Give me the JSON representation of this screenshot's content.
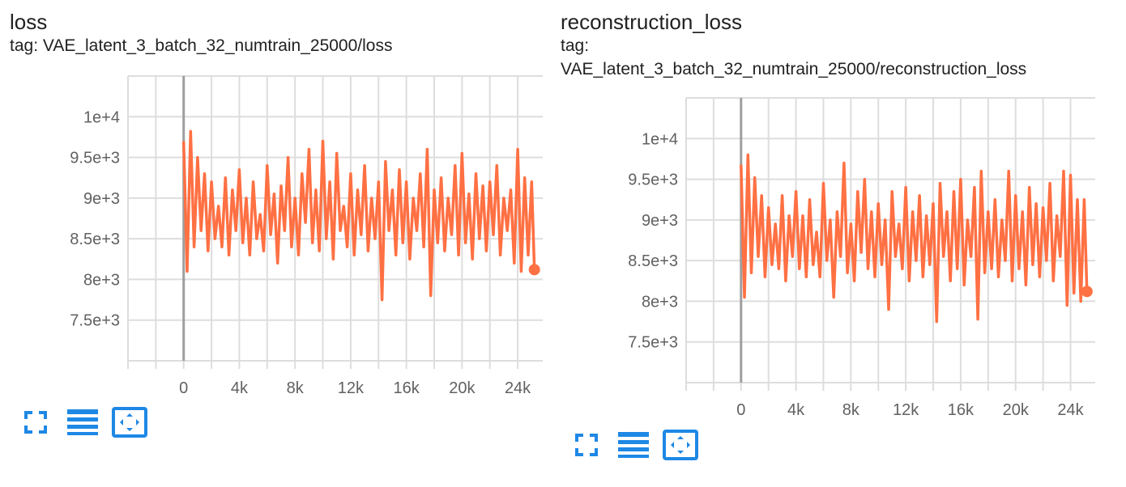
{
  "colors": {
    "series": "#ff7043",
    "grid": "#dddddd",
    "axis": "#9e9e9e",
    "zero_line": "#9e9e9e",
    "icon": "#1e88e5"
  },
  "cards": [
    {
      "title": "loss",
      "tag_label": "tag:",
      "tag_value": "VAE_latent_3_batch_32_numtrain_25000/loss",
      "toolbar": {
        "fullscreen_icon": "fullscreen-icon",
        "data_table_icon": "data-table-icon",
        "fit_domain_icon": "fit-domain-icon"
      },
      "chart_data": {
        "type": "line",
        "title": "loss",
        "xlabel": "",
        "ylabel": "",
        "x_ticks": [
          "0",
          "4k",
          "8k",
          "12k",
          "16k",
          "20k",
          "24k"
        ],
        "y_ticks": [
          "1e+4",
          "9.5e+3",
          "9e+3",
          "8.5e+3",
          "8e+3",
          "7.5e+3"
        ],
        "xlim": [
          -4000,
          25800
        ],
        "ylim": [
          7000,
          10500
        ],
        "grid": true,
        "series": [
          {
            "x": [
              0,
              250,
              500,
              750,
              1000,
              1250,
              1500,
              1750,
              2000,
              2250,
              2500,
              2750,
              3000,
              3250,
              3500,
              3750,
              4000,
              4250,
              4500,
              4750,
              5000,
              5250,
              5500,
              5750,
              6000,
              6250,
              6500,
              6750,
              7000,
              7250,
              7500,
              7750,
              8000,
              8250,
              8500,
              8750,
              9000,
              9250,
              9500,
              9750,
              10000,
              10250,
              10500,
              10750,
              11000,
              11250,
              11500,
              11750,
              12000,
              12250,
              12500,
              12750,
              13000,
              13250,
              13500,
              13750,
              14000,
              14250,
              14500,
              14750,
              15000,
              15250,
              15500,
              15750,
              16000,
              16250,
              16500,
              16750,
              17000,
              17250,
              17500,
              17750,
              18000,
              18250,
              18500,
              18750,
              19000,
              19250,
              19500,
              19750,
              20000,
              20250,
              20500,
              20750,
              21000,
              21250,
              21500,
              21750,
              22000,
              22250,
              22500,
              22750,
              23000,
              23250,
              23500,
              23750,
              24000,
              24250,
              24500,
              24750,
              25000,
              25200
            ],
            "y": [
              9700,
              8100,
              9820,
              8400,
              9500,
              8600,
              9300,
              8350,
              9200,
              8500,
              8900,
              8400,
              9250,
              8300,
              9100,
              8600,
              9350,
              8450,
              9000,
              8300,
              9200,
              8500,
              8800,
              8350,
              9400,
              8550,
              9050,
              8200,
              9150,
              8600,
              9500,
              8400,
              9000,
              8300,
              9300,
              8700,
              9600,
              8450,
              9100,
              8350,
              9700,
              8500,
              9200,
              8250,
              9550,
              8600,
              8900,
              8400,
              9300,
              8300,
              9100,
              8550,
              9400,
              8350,
              9000,
              8500,
              9200,
              7750,
              9450,
              8600,
              9100,
              8300,
              9350,
              8450,
              9200,
              8250,
              9000,
              8600,
              9300,
              8400,
              9600,
              7800,
              9100,
              8450,
              9250,
              8350,
              9000,
              8550,
              9400,
              8300,
              9550,
              8450,
              9050,
              8250,
              9300,
              8500,
              9150,
              8350,
              9200,
              8550,
              9400,
              8300,
              9000,
              8600,
              9100,
              8200,
              9600,
              8100,
              9250,
              8300,
              9200,
              8120
            ]
          }
        ]
      }
    },
    {
      "title": "reconstruction_loss",
      "tag_label": "tag:",
      "tag_value": "VAE_latent_3_batch_32_numtrain_25000/reconstruction_loss",
      "toolbar": {
        "fullscreen_icon": "fullscreen-icon",
        "data_table_icon": "data-table-icon",
        "fit_domain_icon": "fit-domain-icon"
      },
      "chart_data": {
        "type": "line",
        "title": "reconstruction_loss",
        "xlabel": "",
        "ylabel": "",
        "x_ticks": [
          "0",
          "4k",
          "8k",
          "12k",
          "16k",
          "20k",
          "24k"
        ],
        "y_ticks": [
          "1e+4",
          "9.5e+3",
          "9e+3",
          "8.5e+3",
          "8e+3",
          "7.5e+3"
        ],
        "xlim": [
          -4000,
          25800
        ],
        "ylim": [
          7000,
          10500
        ],
        "grid": true,
        "series": [
          {
            "x": [
              0,
              250,
              500,
              750,
              1000,
              1250,
              1500,
              1750,
              2000,
              2250,
              2500,
              2750,
              3000,
              3250,
              3500,
              3750,
              4000,
              4250,
              4500,
              4750,
              5000,
              5250,
              5500,
              5750,
              6000,
              6250,
              6500,
              6750,
              7000,
              7250,
              7500,
              7750,
              8000,
              8250,
              8500,
              8750,
              9000,
              9250,
              9500,
              9750,
              10000,
              10250,
              10500,
              10750,
              11000,
              11250,
              11500,
              11750,
              12000,
              12250,
              12500,
              12750,
              13000,
              13250,
              13500,
              13750,
              14000,
              14250,
              14500,
              14750,
              15000,
              15250,
              15500,
              15750,
              16000,
              16250,
              16500,
              16750,
              17000,
              17250,
              17500,
              17750,
              18000,
              18250,
              18500,
              18750,
              19000,
              19250,
              19500,
              19750,
              20000,
              20250,
              20500,
              20750,
              21000,
              21250,
              21500,
              21750,
              22000,
              22250,
              22500,
              22750,
              23000,
              23250,
              23500,
              23750,
              24000,
              24250,
              24500,
              24750,
              25000,
              25200
            ],
            "y": [
              9680,
              8050,
              9800,
              8350,
              9520,
              8550,
              9300,
              8300,
              9150,
              8450,
              8950,
              8400,
              9300,
              8250,
              9050,
              8550,
              9350,
              8400,
              9050,
              8300,
              9250,
              8450,
              8850,
              8300,
              9450,
              8500,
              9000,
              8050,
              9100,
              8550,
              9700,
              8350,
              8950,
              8250,
              9350,
              8600,
              9500,
              8400,
              9100,
              8300,
              9200,
              8450,
              9000,
              7900,
              9350,
              8550,
              8950,
              8400,
              9400,
              8250,
              9100,
              8500,
              9300,
              8300,
              9050,
              8450,
              9200,
              7750,
              9450,
              8550,
              9100,
              8250,
              9350,
              8400,
              9500,
              8200,
              9000,
              8550,
              9400,
              7780,
              9600,
              8350,
              9100,
              8400,
              9250,
              8300,
              9000,
              8500,
              9600,
              8250,
              9300,
              8400,
              9100,
              8200,
              9400,
              8450,
              9200,
              8300,
              9150,
              8500,
              9450,
              8250,
              9050,
              8550,
              9600,
              7950,
              9550,
              8100,
              9250,
              8000,
              9250,
              8120
            ]
          }
        ]
      }
    }
  ]
}
